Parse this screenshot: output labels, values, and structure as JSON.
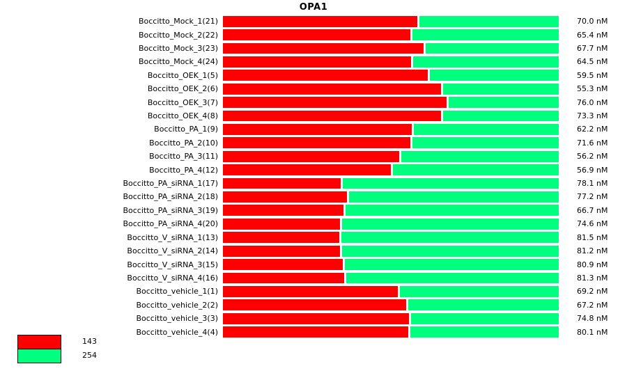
{
  "title": "OPA1",
  "legend": {
    "items": [
      {
        "label": "143",
        "color": "#ff0000"
      },
      {
        "label": "254",
        "color": "#00ff7f"
      }
    ]
  },
  "chart_data": {
    "type": "bar",
    "orientation": "horizontal",
    "stacked": true,
    "title": "OPA1",
    "unit": "nM",
    "legend_position": "bottom-left",
    "series": [
      {
        "name": "143",
        "color": "#ff0000"
      },
      {
        "name": "254",
        "color": "#00ff7f"
      }
    ],
    "rows": [
      {
        "label": "Boccitto_Mock_1(21)",
        "value_nM": 70.0,
        "value_label": "70.0 nM",
        "red_pct": 57.9,
        "green_pct": 42.1
      },
      {
        "label": "Boccitto_Mock_2(22)",
        "value_nM": 65.4,
        "value_label": "65.4 nM",
        "red_pct": 55.8,
        "green_pct": 44.2
      },
      {
        "label": "Boccitto_Mock_3(23)",
        "value_nM": 67.7,
        "value_label": "67.7 nM",
        "red_pct": 59.7,
        "green_pct": 40.3
      },
      {
        "label": "Boccitto_Mock_4(24)",
        "value_nM": 64.5,
        "value_label": "64.5 nM",
        "red_pct": 56.0,
        "green_pct": 44.0
      },
      {
        "label": "Boccitto_OEK_1(5)",
        "value_nM": 59.5,
        "value_label": "59.5 nM",
        "red_pct": 61.0,
        "green_pct": 39.0
      },
      {
        "label": "Boccitto_OEK_2(6)",
        "value_nM": 55.3,
        "value_label": "55.3 nM",
        "red_pct": 64.9,
        "green_pct": 35.1
      },
      {
        "label": "Boccitto_OEK_3(7)",
        "value_nM": 76.0,
        "value_label": "76.0 nM",
        "red_pct": 66.6,
        "green_pct": 33.4
      },
      {
        "label": "Boccitto_OEK_4(8)",
        "value_nM": 73.3,
        "value_label": "73.3 nM",
        "red_pct": 64.9,
        "green_pct": 35.1
      },
      {
        "label": "Boccitto_PA_1(9)",
        "value_nM": 62.2,
        "value_label": "62.2 nM",
        "red_pct": 56.2,
        "green_pct": 43.8
      },
      {
        "label": "Boccitto_PA_2(10)",
        "value_nM": 71.6,
        "value_label": "71.6 nM",
        "red_pct": 55.8,
        "green_pct": 44.2
      },
      {
        "label": "Boccitto_PA_3(11)",
        "value_nM": 56.2,
        "value_label": "56.2 nM",
        "red_pct": 52.4,
        "green_pct": 47.6
      },
      {
        "label": "Boccitto_PA_4(12)",
        "value_nM": 56.9,
        "value_label": "56.9 nM",
        "red_pct": 50.1,
        "green_pct": 49.9
      },
      {
        "label": "Boccitto_PA_siRNA_1(17)",
        "value_nM": 78.1,
        "value_label": "78.1 nM",
        "red_pct": 35.1,
        "green_pct": 64.9
      },
      {
        "label": "Boccitto_PA_siRNA_2(18)",
        "value_nM": 77.2,
        "value_label": "77.2 nM",
        "red_pct": 37.0,
        "green_pct": 63.0
      },
      {
        "label": "Boccitto_PA_siRNA_3(19)",
        "value_nM": 66.7,
        "value_label": "66.7 nM",
        "red_pct": 35.9,
        "green_pct": 64.1
      },
      {
        "label": "Boccitto_PA_siRNA_4(20)",
        "value_nM": 74.6,
        "value_label": "74.6 nM",
        "red_pct": 34.9,
        "green_pct": 65.1
      },
      {
        "label": "Boccitto_V_siRNA_1(13)",
        "value_nM": 81.5,
        "value_label": "81.5 nM",
        "red_pct": 34.6,
        "green_pct": 65.4
      },
      {
        "label": "Boccitto_V_siRNA_2(14)",
        "value_nM": 81.2,
        "value_label": "81.2 nM",
        "red_pct": 34.9,
        "green_pct": 65.1
      },
      {
        "label": "Boccitto_V_siRNA_3(15)",
        "value_nM": 80.9,
        "value_label": "80.9 nM",
        "red_pct": 35.6,
        "green_pct": 64.4
      },
      {
        "label": "Boccitto_V_siRNA_4(16)",
        "value_nM": 81.3,
        "value_label": "81.3 nM",
        "red_pct": 36.1,
        "green_pct": 63.9
      },
      {
        "label": "Boccitto_vehicle_1(1)",
        "value_nM": 69.2,
        "value_label": "69.2 nM",
        "red_pct": 52.0,
        "green_pct": 48.0
      },
      {
        "label": "Boccitto_vehicle_2(2)",
        "value_nM": 67.2,
        "value_label": "67.2 nM",
        "red_pct": 54.5,
        "green_pct": 45.5
      },
      {
        "label": "Boccitto_vehicle_3(3)",
        "value_nM": 74.8,
        "value_label": "74.8 nM",
        "red_pct": 55.3,
        "green_pct": 44.7
      },
      {
        "label": "Boccitto_vehicle_4(4)",
        "value_nM": 80.1,
        "value_label": "80.1 nM",
        "red_pct": 55.1,
        "green_pct": 44.9
      }
    ]
  }
}
